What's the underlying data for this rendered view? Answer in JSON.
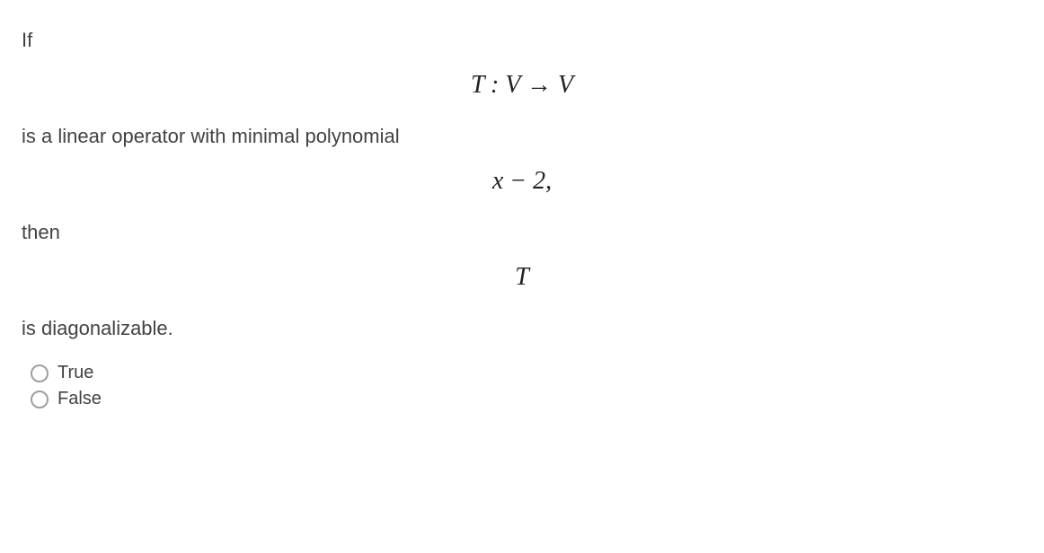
{
  "question": {
    "line1": "If",
    "math1": "T : V → V",
    "line2": "is a linear operator with minimal polynomial",
    "math2": "x − 2,",
    "line3": "then",
    "math3": "T",
    "line4": "is diagonalizable."
  },
  "options": {
    "opt1": "True",
    "opt2": "False"
  },
  "styling": {
    "body_font_size": 22,
    "math_font_size": 28,
    "text_color": "#424242",
    "math_color": "#212121",
    "background_color": "#ffffff",
    "radio_border_color": "#9e9e9e",
    "radio_size": 20,
    "option_font_size": 20
  }
}
